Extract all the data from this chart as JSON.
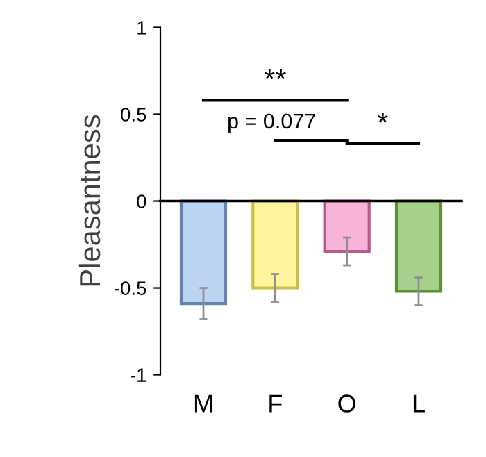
{
  "chart_data": {
    "type": "bar",
    "ylabel": "Pleasantness",
    "categories": [
      "M",
      "F",
      "O",
      "L"
    ],
    "values": [
      -0.59,
      -0.5,
      -0.29,
      -0.52
    ],
    "errors": [
      0.09,
      0.08,
      0.08,
      0.08
    ],
    "colors": [
      "#bcd4f2",
      "#fff59e",
      "#f7b3d8",
      "#a8d08d"
    ],
    "ylim": [
      -1,
      1
    ],
    "yticks": [
      -1,
      -0.5,
      0,
      0.5,
      1
    ],
    "annotations": [
      "**",
      "p = 0.077",
      "*"
    ]
  }
}
